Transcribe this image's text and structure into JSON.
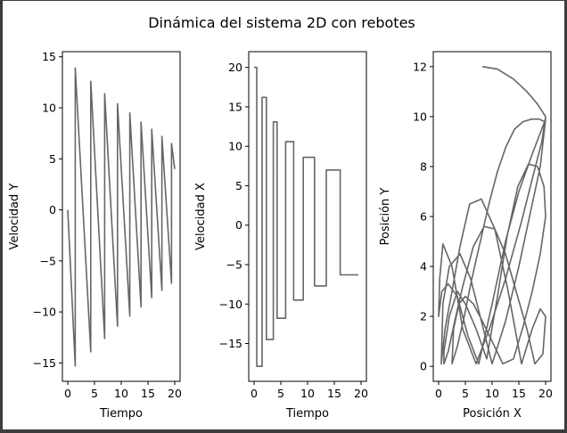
{
  "figure_title": "Dinámica del sistema 2D con rebotes",
  "colors": {
    "line": "#666666",
    "axis": "#000000",
    "background": "#ffffff"
  },
  "chart_data": [
    {
      "type": "line",
      "xlabel": "Tiempo",
      "ylabel": "Velocidad Y",
      "xlim": [
        -1,
        21
      ],
      "ylim": [
        -16.8,
        15.5
      ],
      "xticks": [
        0,
        5,
        10,
        15,
        20
      ],
      "yticks": [
        -15,
        -10,
        -5,
        0,
        5,
        10,
        15
      ],
      "grid": false,
      "series": [
        {
          "x": [
            0,
            1.4,
            1.4,
            4.3,
            4.3,
            6.9,
            6.9,
            9.3,
            9.3,
            11.6,
            11.6,
            13.7,
            13.7,
            15.7,
            15.7,
            17.6,
            17.6,
            19.4,
            19.4,
            20
          ],
          "values": [
            0,
            -15.3,
            13.9,
            -13.9,
            12.6,
            -12.6,
            11.4,
            -11.4,
            10.4,
            -10.4,
            9.5,
            -9.5,
            8.6,
            -8.6,
            7.9,
            -7.9,
            7.2,
            -7.2,
            6.5,
            4.0
          ]
        }
      ]
    },
    {
      "type": "line",
      "xlabel": "Tiempo",
      "ylabel": "Velocidad X",
      "xlim": [
        -1,
        21
      ],
      "ylim": [
        -19.8,
        22
      ],
      "xticks": [
        0,
        5,
        10,
        15,
        20
      ],
      "yticks": [
        -15,
        -10,
        -5,
        0,
        5,
        10,
        15,
        20
      ],
      "grid": false,
      "series": [
        {
          "x": [
            0,
            0.5,
            0.5,
            1.5,
            1.5,
            2.3,
            2.3,
            3.6,
            3.6,
            4.3,
            4.3,
            5.9,
            5.9,
            7.4,
            7.4,
            9.2,
            9.2,
            11.3,
            11.3,
            13.5,
            13.5,
            16.1,
            16.1,
            18.8,
            18.8,
            19.5
          ],
          "values": [
            20,
            20,
            -17.9,
            -17.9,
            16.2,
            16.2,
            -14.5,
            -14.5,
            13.1,
            13.1,
            -11.8,
            -11.8,
            10.6,
            10.6,
            -9.5,
            -9.5,
            8.6,
            8.6,
            -7.7,
            -7.7,
            7.0,
            7.0,
            -6.3,
            -6.3,
            -6.3,
            -6.3
          ]
        }
      ]
    },
    {
      "type": "line",
      "xlabel": "Posición X",
      "ylabel": "Posición Y",
      "xlim": [
        -1,
        21
      ],
      "ylim": [
        -0.6,
        12.6
      ],
      "xticks": [
        0,
        5,
        10,
        15,
        20
      ],
      "yticks": [
        0,
        2,
        4,
        6,
        8,
        10,
        12
      ],
      "grid": false,
      "series": [
        {
          "x": [
            8.2,
            11.0,
            14.0,
            16.5,
            18.5,
            20.0,
            19.3,
            17.5,
            15.5,
            12.5,
            9.5,
            7.0,
            4.5,
            2.5,
            0.8,
            0.2,
            0.0,
            0.6,
            1.8,
            3.5,
            5.5,
            7.5,
            10.0,
            12.5,
            15.0,
            17.5,
            20.0,
            19.0,
            17.0,
            15.0,
            12.5,
            10.0,
            8.0,
            6.0,
            4.0,
            2.0,
            0.8,
            0.5,
            1.2,
            2.5,
            4.0,
            5.8,
            8.0,
            10.5,
            13.0,
            15.5,
            17.5,
            19.0,
            20.0,
            19.5,
            18.0,
            16.5,
            14.5,
            12.5,
            10.5,
            8.5,
            6.5,
            4.5,
            3.0,
            1.8,
            1.0,
            1.0,
            2.0,
            3.5,
            5.0,
            7.0,
            9.0,
            11.0,
            12.8,
            14.8,
            16.8,
            18.5,
            19.7,
            20.0,
            19.0,
            17.5,
            15.8,
            14.0,
            12.0,
            10.0,
            8.2,
            6.5,
            5.0,
            3.8,
            2.8,
            2.5,
            3.5,
            4.8,
            6.2,
            7.8,
            9.4,
            11.0,
            12.6,
            14.2,
            15.8,
            17.4,
            18.8,
            19.8,
            20.0
          ],
          "values": [
            12.0,
            11.9,
            11.5,
            11.0,
            10.5,
            10.0,
            9.0,
            7.5,
            5.8,
            3.5,
            1.5,
            0.1,
            1.5,
            4.0,
            4.9,
            3.5,
            2.0,
            3.0,
            3.3,
            2.8,
            1.2,
            0.1,
            2.5,
            5.0,
            7.0,
            8.5,
            9.9,
            8.0,
            6.0,
            4.0,
            1.8,
            0.1,
            1.8,
            3.5,
            4.5,
            4.0,
            2.5,
            0.1,
            1.5,
            3.0,
            4.8,
            6.5,
            6.7,
            5.5,
            3.0,
            0.1,
            1.5,
            2.3,
            2.0,
            0.5,
            0.1,
            1.5,
            3.0,
            4.5,
            5.5,
            5.6,
            4.8,
            3.2,
            1.8,
            0.6,
            0.1,
            0.6,
            2.0,
            3.0,
            2.5,
            1.5,
            0.3,
            2.8,
            5.2,
            7.2,
            8.1,
            8.0,
            7.2,
            6.0,
            4.5,
            3.0,
            1.6,
            0.3,
            0.1,
            1.0,
            1.8,
            2.5,
            2.8,
            2.5,
            1.5,
            0.1,
            0.8,
            2.0,
            3.5,
            5.0,
            6.5,
            7.8,
            8.8,
            9.5,
            9.8,
            9.9,
            9.9,
            9.8,
            9.8
          ]
        }
      ]
    }
  ]
}
